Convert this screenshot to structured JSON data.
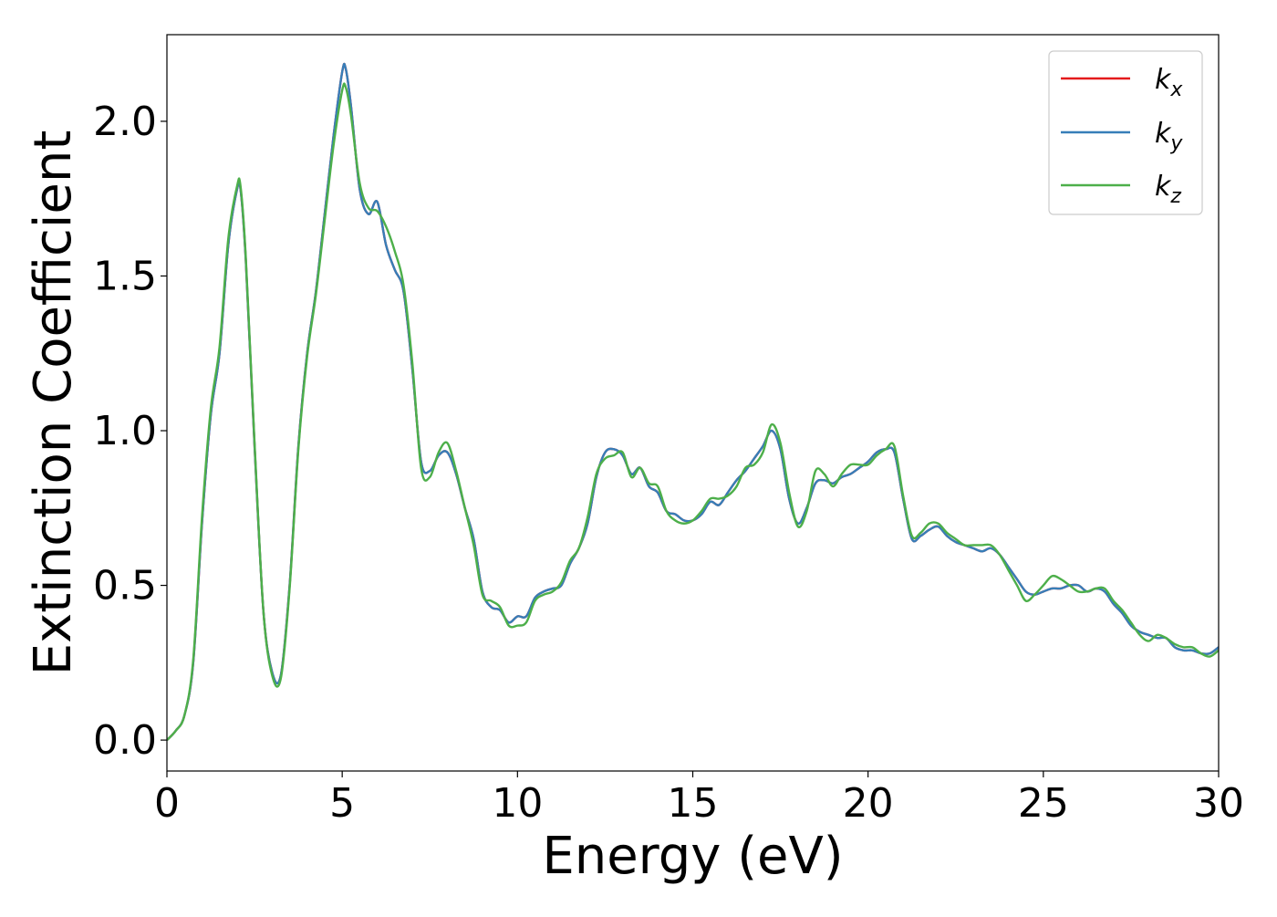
{
  "chart_data": {
    "type": "line",
    "xlabel": "Energy (eV)",
    "ylabel": "Extinction Coefficient",
    "xlim": [
      0,
      30
    ],
    "ylim": [
      -0.1,
      2.28
    ],
    "xticks": [
      0,
      5,
      10,
      15,
      20,
      25,
      30
    ],
    "yticks": [
      0.0,
      0.5,
      1.0,
      1.5,
      2.0
    ],
    "xtick_labels": [
      "0",
      "5",
      "10",
      "15",
      "20",
      "25",
      "30"
    ],
    "ytick_labels": [
      "0.0",
      "0.5",
      "1.0",
      "1.5",
      "2.0"
    ],
    "grid": false,
    "legend_position": "top-right",
    "series": [
      {
        "name": "k_x",
        "label_base": "k",
        "label_sub": "x",
        "color": "#e41a1c",
        "x": [
          0,
          0.25,
          0.5,
          0.75,
          1.0,
          1.25,
          1.5,
          1.75,
          2.0,
          2.1,
          2.25,
          2.5,
          2.75,
          3.0,
          3.25,
          3.5,
          3.75,
          4.0,
          4.25,
          4.5,
          4.75,
          5.0,
          5.1,
          5.25,
          5.5,
          5.75,
          6.0,
          6.25,
          6.5,
          6.75,
          7.0,
          7.25,
          7.5,
          7.75,
          8.0,
          8.25,
          8.5,
          8.75,
          9.0,
          9.25,
          9.5,
          9.75,
          10.0,
          10.25,
          10.5,
          10.75,
          11.0,
          11.25,
          11.5,
          11.75,
          12.0,
          12.25,
          12.5,
          12.75,
          13.0,
          13.25,
          13.5,
          13.75,
          14.0,
          14.25,
          14.5,
          14.75,
          15.0,
          15.25,
          15.5,
          15.75,
          16.0,
          16.25,
          16.5,
          16.75,
          17.0,
          17.25,
          17.5,
          17.75,
          18.0,
          18.25,
          18.5,
          18.75,
          19.0,
          19.25,
          19.5,
          19.75,
          20.0,
          20.25,
          20.5,
          20.75,
          21.0,
          21.25,
          21.5,
          21.75,
          22.0,
          22.25,
          22.5,
          22.75,
          23.0,
          23.25,
          23.5,
          23.75,
          24.0,
          24.25,
          24.5,
          24.75,
          25.0,
          25.25,
          25.5,
          25.75,
          26.0,
          26.25,
          26.5,
          26.75,
          27.0,
          27.25,
          27.5,
          27.75,
          28.0,
          28.25,
          28.5,
          28.75,
          29.0,
          29.25,
          29.5,
          29.75,
          30.0
        ],
        "y": [
          0.0,
          0.03,
          0.08,
          0.25,
          0.7,
          1.05,
          1.25,
          1.6,
          1.78,
          1.78,
          1.55,
          0.95,
          0.42,
          0.22,
          0.21,
          0.5,
          0.95,
          1.25,
          1.45,
          1.7,
          1.95,
          2.16,
          2.17,
          2.05,
          1.78,
          1.7,
          1.74,
          1.6,
          1.52,
          1.45,
          1.2,
          0.9,
          0.87,
          0.92,
          0.93,
          0.86,
          0.75,
          0.65,
          0.48,
          0.43,
          0.42,
          0.38,
          0.4,
          0.4,
          0.46,
          0.48,
          0.49,
          0.5,
          0.57,
          0.62,
          0.7,
          0.85,
          0.93,
          0.94,
          0.92,
          0.86,
          0.88,
          0.82,
          0.8,
          0.74,
          0.73,
          0.71,
          0.71,
          0.73,
          0.77,
          0.76,
          0.8,
          0.84,
          0.87,
          0.91,
          0.95,
          1.0,
          0.94,
          0.78,
          0.7,
          0.75,
          0.83,
          0.84,
          0.83,
          0.85,
          0.86,
          0.88,
          0.9,
          0.93,
          0.94,
          0.93,
          0.78,
          0.65,
          0.66,
          0.68,
          0.69,
          0.66,
          0.64,
          0.63,
          0.62,
          0.61,
          0.62,
          0.6,
          0.56,
          0.52,
          0.48,
          0.47,
          0.48,
          0.49,
          0.49,
          0.5,
          0.5,
          0.48,
          0.49,
          0.48,
          0.44,
          0.41,
          0.37,
          0.35,
          0.34,
          0.33,
          0.33,
          0.3,
          0.29,
          0.29,
          0.28,
          0.28,
          0.3
        ]
      },
      {
        "name": "k_y",
        "label_base": "k",
        "label_sub": "y",
        "color": "#377eb8",
        "x": [
          0,
          0.25,
          0.5,
          0.75,
          1.0,
          1.25,
          1.5,
          1.75,
          2.0,
          2.1,
          2.25,
          2.5,
          2.75,
          3.0,
          3.25,
          3.5,
          3.75,
          4.0,
          4.25,
          4.5,
          4.75,
          5.0,
          5.1,
          5.25,
          5.5,
          5.75,
          6.0,
          6.25,
          6.5,
          6.75,
          7.0,
          7.25,
          7.5,
          7.75,
          8.0,
          8.25,
          8.5,
          8.75,
          9.0,
          9.25,
          9.5,
          9.75,
          10.0,
          10.25,
          10.5,
          10.75,
          11.0,
          11.25,
          11.5,
          11.75,
          12.0,
          12.25,
          12.5,
          12.75,
          13.0,
          13.25,
          13.5,
          13.75,
          14.0,
          14.25,
          14.5,
          14.75,
          15.0,
          15.25,
          15.5,
          15.75,
          16.0,
          16.25,
          16.5,
          16.75,
          17.0,
          17.25,
          17.5,
          17.75,
          18.0,
          18.25,
          18.5,
          18.75,
          19.0,
          19.25,
          19.5,
          19.75,
          20.0,
          20.25,
          20.5,
          20.75,
          21.0,
          21.25,
          21.5,
          21.75,
          22.0,
          22.25,
          22.5,
          22.75,
          23.0,
          23.25,
          23.5,
          23.75,
          24.0,
          24.25,
          24.5,
          24.75,
          25.0,
          25.25,
          25.5,
          25.75,
          26.0,
          26.25,
          26.5,
          26.75,
          27.0,
          27.25,
          27.5,
          27.75,
          28.0,
          28.25,
          28.5,
          28.75,
          29.0,
          29.25,
          29.5,
          29.75,
          30.0
        ],
        "y": [
          0.0,
          0.03,
          0.08,
          0.25,
          0.7,
          1.05,
          1.25,
          1.6,
          1.78,
          1.78,
          1.55,
          0.95,
          0.42,
          0.22,
          0.21,
          0.5,
          0.95,
          1.25,
          1.45,
          1.7,
          1.95,
          2.16,
          2.17,
          2.05,
          1.78,
          1.7,
          1.74,
          1.6,
          1.52,
          1.45,
          1.2,
          0.9,
          0.87,
          0.92,
          0.93,
          0.86,
          0.75,
          0.65,
          0.48,
          0.43,
          0.42,
          0.38,
          0.4,
          0.4,
          0.46,
          0.48,
          0.49,
          0.5,
          0.57,
          0.62,
          0.7,
          0.85,
          0.93,
          0.94,
          0.92,
          0.86,
          0.88,
          0.82,
          0.8,
          0.74,
          0.73,
          0.71,
          0.71,
          0.73,
          0.77,
          0.76,
          0.8,
          0.84,
          0.87,
          0.91,
          0.95,
          1.0,
          0.94,
          0.78,
          0.7,
          0.75,
          0.83,
          0.84,
          0.83,
          0.85,
          0.86,
          0.88,
          0.9,
          0.93,
          0.94,
          0.93,
          0.78,
          0.65,
          0.66,
          0.68,
          0.69,
          0.66,
          0.64,
          0.63,
          0.62,
          0.61,
          0.62,
          0.6,
          0.56,
          0.52,
          0.48,
          0.47,
          0.48,
          0.49,
          0.49,
          0.5,
          0.5,
          0.48,
          0.49,
          0.48,
          0.44,
          0.41,
          0.37,
          0.35,
          0.34,
          0.33,
          0.33,
          0.3,
          0.29,
          0.29,
          0.28,
          0.28,
          0.3
        ]
      },
      {
        "name": "k_z",
        "label_base": "k",
        "label_sub": "z",
        "color": "#4daf4a",
        "x": [
          0,
          0.25,
          0.5,
          0.75,
          1.0,
          1.25,
          1.5,
          1.75,
          2.0,
          2.1,
          2.25,
          2.5,
          2.75,
          3.0,
          3.25,
          3.5,
          3.75,
          4.0,
          4.25,
          4.5,
          4.75,
          5.0,
          5.1,
          5.25,
          5.5,
          5.75,
          6.0,
          6.25,
          6.5,
          6.75,
          7.0,
          7.25,
          7.5,
          7.75,
          8.0,
          8.25,
          8.5,
          8.75,
          9.0,
          9.25,
          9.5,
          9.75,
          10.0,
          10.25,
          10.5,
          10.75,
          11.0,
          11.25,
          11.5,
          11.75,
          12.0,
          12.25,
          12.5,
          12.75,
          13.0,
          13.25,
          13.5,
          13.75,
          14.0,
          14.25,
          14.5,
          14.75,
          15.0,
          15.25,
          15.5,
          15.75,
          16.0,
          16.25,
          16.5,
          16.75,
          17.0,
          17.25,
          17.5,
          17.75,
          18.0,
          18.25,
          18.5,
          18.75,
          19.0,
          19.25,
          19.5,
          19.75,
          20.0,
          20.25,
          20.5,
          20.75,
          21.0,
          21.25,
          21.5,
          21.75,
          22.0,
          22.25,
          22.5,
          22.75,
          23.0,
          23.25,
          23.5,
          23.75,
          24.0,
          24.25,
          24.5,
          24.75,
          25.0,
          25.25,
          25.5,
          25.75,
          26.0,
          26.25,
          26.5,
          26.75,
          27.0,
          27.25,
          27.5,
          27.75,
          28.0,
          28.25,
          28.5,
          28.75,
          29.0,
          29.25,
          29.5,
          29.75,
          30.0
        ],
        "y": [
          0.0,
          0.03,
          0.08,
          0.26,
          0.72,
          1.07,
          1.27,
          1.62,
          1.79,
          1.79,
          1.56,
          0.96,
          0.42,
          0.21,
          0.2,
          0.49,
          0.94,
          1.24,
          1.44,
          1.68,
          1.92,
          2.1,
          2.11,
          2.02,
          1.8,
          1.72,
          1.71,
          1.66,
          1.58,
          1.47,
          1.22,
          0.88,
          0.85,
          0.93,
          0.96,
          0.87,
          0.75,
          0.63,
          0.47,
          0.45,
          0.43,
          0.37,
          0.37,
          0.38,
          0.45,
          0.47,
          0.48,
          0.51,
          0.58,
          0.62,
          0.72,
          0.86,
          0.91,
          0.92,
          0.93,
          0.85,
          0.88,
          0.83,
          0.82,
          0.74,
          0.71,
          0.7,
          0.71,
          0.74,
          0.78,
          0.78,
          0.79,
          0.82,
          0.88,
          0.89,
          0.93,
          1.02,
          0.96,
          0.8,
          0.69,
          0.74,
          0.87,
          0.86,
          0.82,
          0.86,
          0.89,
          0.89,
          0.89,
          0.92,
          0.94,
          0.95,
          0.79,
          0.66,
          0.67,
          0.7,
          0.7,
          0.67,
          0.65,
          0.63,
          0.63,
          0.63,
          0.63,
          0.6,
          0.55,
          0.5,
          0.45,
          0.47,
          0.5,
          0.53,
          0.52,
          0.5,
          0.48,
          0.48,
          0.49,
          0.49,
          0.45,
          0.42,
          0.38,
          0.34,
          0.32,
          0.34,
          0.33,
          0.31,
          0.3,
          0.3,
          0.28,
          0.27,
          0.29
        ]
      }
    ]
  }
}
